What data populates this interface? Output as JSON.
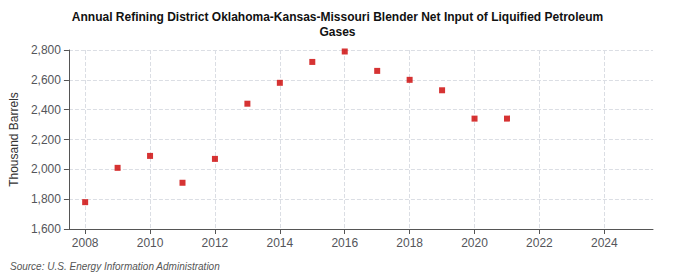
{
  "chart_data": {
    "type": "scatter",
    "title": "Annual Refining District Oklahoma-Kansas-Missouri Blender Net Input of Liquified Petroleum\nGases",
    "ylabel": "Thousand Barrels",
    "source": "Source: U.S. Energy Information Administration",
    "x": [
      2008,
      2009,
      2010,
      2011,
      2012,
      2013,
      2014,
      2015,
      2016,
      2017,
      2018,
      2019,
      2020,
      2021
    ],
    "values": [
      1780,
      2010,
      2090,
      1910,
      2070,
      2440,
      2580,
      2720,
      2790,
      2660,
      2600,
      2530,
      2340,
      2340
    ],
    "color": "#CC0000",
    "marker": "square",
    "xlim": [
      2007.5,
      2025.5
    ],
    "ylim": [
      1600,
      2800
    ],
    "xticks": [
      2008,
      2010,
      2012,
      2014,
      2016,
      2018,
      2020,
      2022,
      2024
    ],
    "yticks": [
      {
        "value": 1600,
        "label": "1,600"
      },
      {
        "value": 1800,
        "label": "1,800"
      },
      {
        "value": 2000,
        "label": "2,000"
      },
      {
        "value": 2200,
        "label": "2,200"
      },
      {
        "value": 2400,
        "label": "2,400"
      },
      {
        "value": 2600,
        "label": "2,600"
      },
      {
        "value": 2800,
        "label": "2,800"
      }
    ],
    "grid": true
  }
}
